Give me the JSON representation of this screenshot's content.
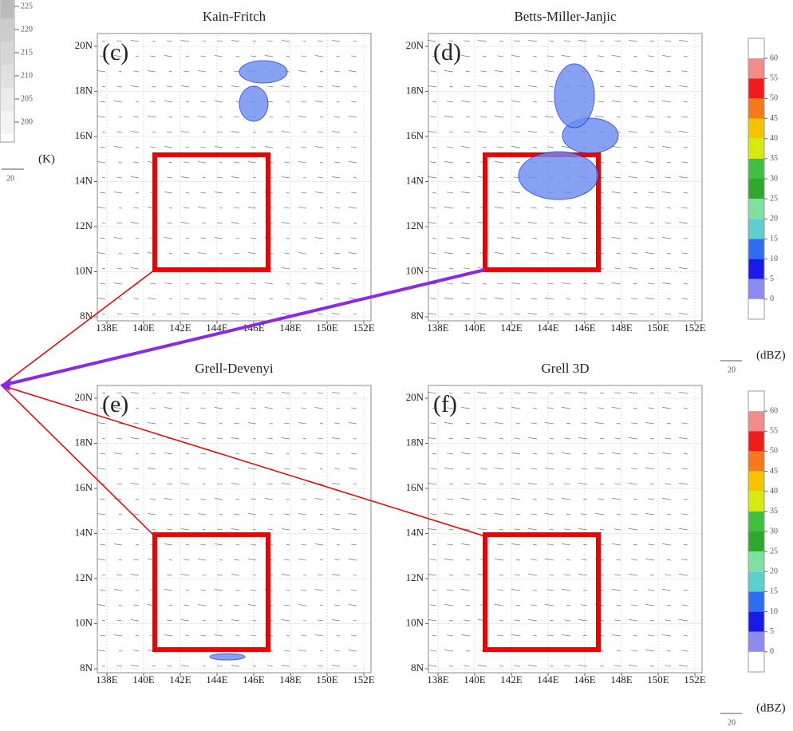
{
  "top_colorbar": {
    "ticks": [
      "225",
      "220",
      "215",
      "210",
      "205",
      "200"
    ],
    "unit": "(K)",
    "vector_ref": "20"
  },
  "panels": [
    {
      "title": "Kain-Fritch",
      "label": "(c)",
      "yticks": [
        "20N",
        "18N",
        "16N",
        "14N",
        "12N",
        "10N",
        "8N"
      ],
      "xticks": [
        "138E",
        "140E",
        "142E",
        "144E",
        "146E",
        "148E",
        "150E",
        "152E"
      ]
    },
    {
      "title": "Betts-Miller-Janjic",
      "label": "(d)",
      "yticks": [
        "20N",
        "18N",
        "16N",
        "14N",
        "12N",
        "10N",
        "8N"
      ],
      "xticks": [
        "138E",
        "140E",
        "142E",
        "144E",
        "146E",
        "148E",
        "150E",
        "152E"
      ]
    },
    {
      "title": "Grell-Devenyi",
      "label": "(e)",
      "yticks": [
        "20N",
        "18N",
        "16N",
        "14N",
        "12N",
        "10N",
        "8N"
      ],
      "xticks": [
        "138E",
        "140E",
        "142E",
        "144E",
        "146E",
        "148E",
        "150E",
        "152E"
      ]
    },
    {
      "title": "Grell 3D",
      "label": "(f)",
      "yticks": [
        "20N",
        "18N",
        "16N",
        "14N",
        "12N",
        "10N",
        "8N"
      ],
      "xticks": [
        "138E",
        "140E",
        "142E",
        "144E",
        "146E",
        "148E",
        "150E",
        "152E"
      ]
    }
  ],
  "colorbars": [
    {
      "ticks": [
        "60",
        "55",
        "50",
        "45",
        "40",
        "35",
        "30",
        "25",
        "20",
        "15",
        "10",
        "5",
        "0"
      ],
      "unit": "(dBZ)",
      "vector_ref": "20"
    },
    {
      "ticks": [
        "60",
        "55",
        "50",
        "45",
        "40",
        "35",
        "30",
        "25",
        "20",
        "15",
        "10",
        "5",
        "0"
      ],
      "unit": "(dBZ)",
      "vector_ref": "20"
    }
  ]
}
